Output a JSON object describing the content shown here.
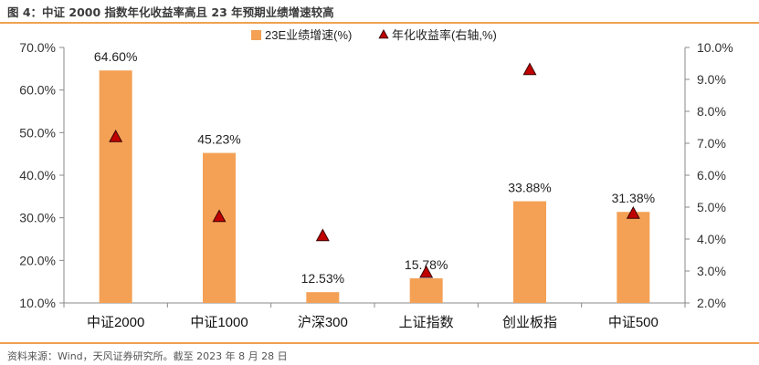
{
  "figure": {
    "title": "图 4：中证 2000 指数年化收益率高且 23 年预期业绩增速较高",
    "source": "资料来源：Wind，天风证券研究所。截至 2023 年 8 月 28 日"
  },
  "colors": {
    "bar": "#F4A156",
    "marker_fill": "#C00000",
    "marker_stroke": "#3a0000",
    "rule": "#F0A050",
    "axis_text": "#333333"
  },
  "chart_data": {
    "type": "bar",
    "categories": [
      "中证2000",
      "中证1000",
      "沪深300",
      "上证指数",
      "创业板指",
      "中证500"
    ],
    "series": [
      {
        "name": "23E业绩增速(%)",
        "type": "bar",
        "axis": "left",
        "values": [
          64.6,
          45.23,
          12.53,
          15.78,
          33.88,
          31.38
        ],
        "labels": [
          "64.60%",
          "45.23%",
          "12.53%",
          "15.78%",
          "33.88%",
          "31.38%"
        ]
      },
      {
        "name": "年化收益率(右轴,%)",
        "type": "scatter",
        "marker": "triangle",
        "axis": "right",
        "values": [
          7.2,
          4.7,
          4.1,
          2.95,
          9.3,
          4.8
        ]
      }
    ],
    "y_left": {
      "lim": [
        10,
        70
      ],
      "ticks": [
        10,
        20,
        30,
        40,
        50,
        60,
        70
      ],
      "tick_labels": [
        "10.0%",
        "20.0%",
        "30.0%",
        "40.0%",
        "50.0%",
        "60.0%",
        "70.0%"
      ]
    },
    "y_right": {
      "lim": [
        2,
        10
      ],
      "ticks": [
        2,
        3,
        4,
        5,
        6,
        7,
        8,
        9,
        10
      ],
      "tick_labels": [
        "2.0%",
        "3.0%",
        "4.0%",
        "5.0%",
        "6.0%",
        "7.0%",
        "8.0%",
        "9.0%",
        "10.0%"
      ]
    },
    "legend_position": "top-center",
    "grid": false
  }
}
